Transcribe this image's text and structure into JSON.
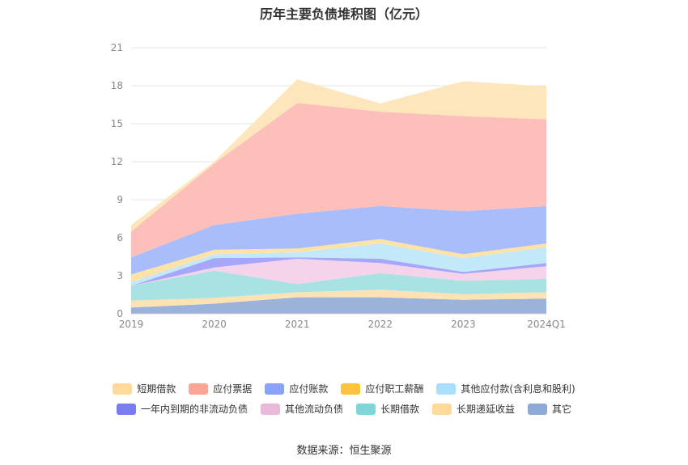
{
  "chart_data": {
    "type": "area",
    "stacked": true,
    "title": "历年主要负债堆积图（亿元）",
    "categories": [
      "2019",
      "2020",
      "2021",
      "2022",
      "2023",
      "2024Q1"
    ],
    "yticks": [
      "0",
      "3",
      "6",
      "9",
      "12",
      "15",
      "18",
      "21"
    ],
    "ylim": [
      0,
      21
    ],
    "grid": true,
    "legend_position": "bottom",
    "series": [
      {
        "name": "其它",
        "color": "#9bb3da",
        "values": [
          0.5,
          0.8,
          1.3,
          1.3,
          1.1,
          1.2
        ]
      },
      {
        "name": "长期递延收益",
        "color": "#fde2b3",
        "values": [
          0.55,
          0.45,
          0.4,
          0.6,
          0.45,
          0.5
        ]
      },
      {
        "name": "长期借款",
        "color": "#a8e2e3",
        "values": [
          1.15,
          2.15,
          0.65,
          1.3,
          1.05,
          1.05
        ]
      },
      {
        "name": "其他流动负债",
        "color": "#f5d3ea",
        "values": [
          0.0,
          0.25,
          2.0,
          0.8,
          0.55,
          1.0
        ]
      },
      {
        "name": "一年内到期的非流动负债",
        "color": "#a6a7f8",
        "values": [
          0.0,
          0.75,
          0.1,
          0.35,
          0.15,
          0.25
        ]
      },
      {
        "name": "其他应付款(含利息和股利)",
        "color": "#c3e8fa",
        "values": [
          0.3,
          0.3,
          0.4,
          1.2,
          1.1,
          1.25
        ]
      },
      {
        "name": "应付职工薪酬",
        "color": "#fde4a6",
        "values": [
          0.6,
          0.35,
          0.3,
          0.35,
          0.3,
          0.3
        ]
      },
      {
        "name": "应付账款",
        "color": "#a9bcfb",
        "values": [
          1.35,
          1.95,
          2.75,
          2.6,
          3.4,
          2.95
        ]
      },
      {
        "name": "应付票据",
        "color": "#fdbfb9",
        "values": [
          2.05,
          4.85,
          8.75,
          7.45,
          7.5,
          6.85
        ]
      },
      {
        "name": "短期借款",
        "color": "#fde6bc",
        "values": [
          0.5,
          0.15,
          1.85,
          0.65,
          2.75,
          2.6
        ]
      }
    ]
  },
  "legend": {
    "row1": [
      {
        "label": "短期借款",
        "color": "#fdd99a"
      },
      {
        "label": "应付票据",
        "color": "#fba596"
      },
      {
        "label": "应付账款",
        "color": "#8aa2f8"
      },
      {
        "label": "应付职工薪酬",
        "color": "#fcc43e"
      },
      {
        "label": "其他应付款(含利息和股利)",
        "color": "#a9dffa"
      }
    ],
    "row2": [
      {
        "label": "一年内到期的非流动负债",
        "color": "#7a7cf4"
      },
      {
        "label": "其他流动负债",
        "color": "#e9b9da"
      },
      {
        "label": "长期借款",
        "color": "#7fd6d7"
      },
      {
        "label": "长期递延收益",
        "color": "#fdd99a"
      },
      {
        "label": "其它",
        "color": "#8eabd8"
      }
    ]
  },
  "source": "数据来源：恒生聚源"
}
